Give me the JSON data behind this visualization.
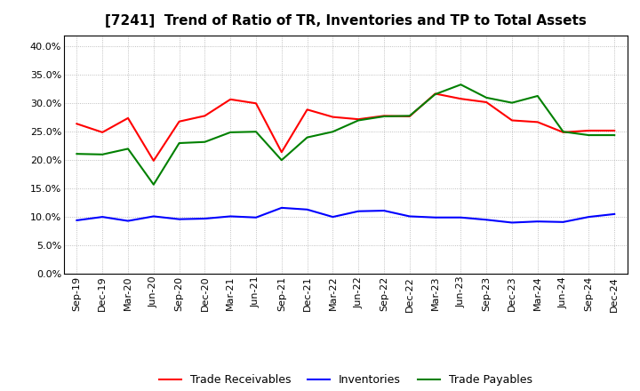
{
  "title": "[7241]  Trend of Ratio of TR, Inventories and TP to Total Assets",
  "x_labels": [
    "Sep-19",
    "Dec-19",
    "Mar-20",
    "Jun-20",
    "Sep-20",
    "Dec-20",
    "Mar-21",
    "Jun-21",
    "Sep-21",
    "Dec-21",
    "Mar-22",
    "Jun-22",
    "Sep-22",
    "Dec-22",
    "Mar-23",
    "Jun-23",
    "Sep-23",
    "Dec-23",
    "Mar-24",
    "Jun-24",
    "Sep-24",
    "Dec-24"
  ],
  "trade_receivables": [
    0.264,
    0.249,
    0.274,
    0.199,
    0.268,
    0.278,
    0.307,
    0.3,
    0.214,
    0.289,
    0.276,
    0.272,
    0.278,
    0.277,
    0.317,
    0.308,
    0.302,
    0.27,
    0.267,
    0.249,
    0.252,
    0.252
  ],
  "inventories": [
    0.094,
    0.1,
    0.093,
    0.101,
    0.096,
    0.097,
    0.101,
    0.099,
    0.116,
    0.113,
    0.1,
    0.11,
    0.111,
    0.101,
    0.099,
    0.099,
    0.095,
    0.09,
    0.092,
    0.091,
    0.1,
    0.105
  ],
  "trade_payables": [
    0.211,
    0.21,
    0.22,
    0.157,
    0.23,
    0.232,
    0.249,
    0.25,
    0.2,
    0.24,
    0.25,
    0.27,
    0.277,
    0.278,
    0.316,
    0.333,
    0.31,
    0.301,
    0.313,
    0.25,
    0.244,
    0.244
  ],
  "tr_color": "#ff0000",
  "inv_color": "#0000ff",
  "tp_color": "#008000",
  "ylim": [
    0.0,
    0.42
  ],
  "yticks": [
    0.0,
    0.05,
    0.1,
    0.15,
    0.2,
    0.25,
    0.3,
    0.35,
    0.4
  ],
  "bg_color": "#ffffff",
  "grid_color": "#999999",
  "legend_labels": [
    "Trade Receivables",
    "Inventories",
    "Trade Payables"
  ],
  "title_fontsize": 11,
  "tick_fontsize": 8,
  "legend_fontsize": 9
}
